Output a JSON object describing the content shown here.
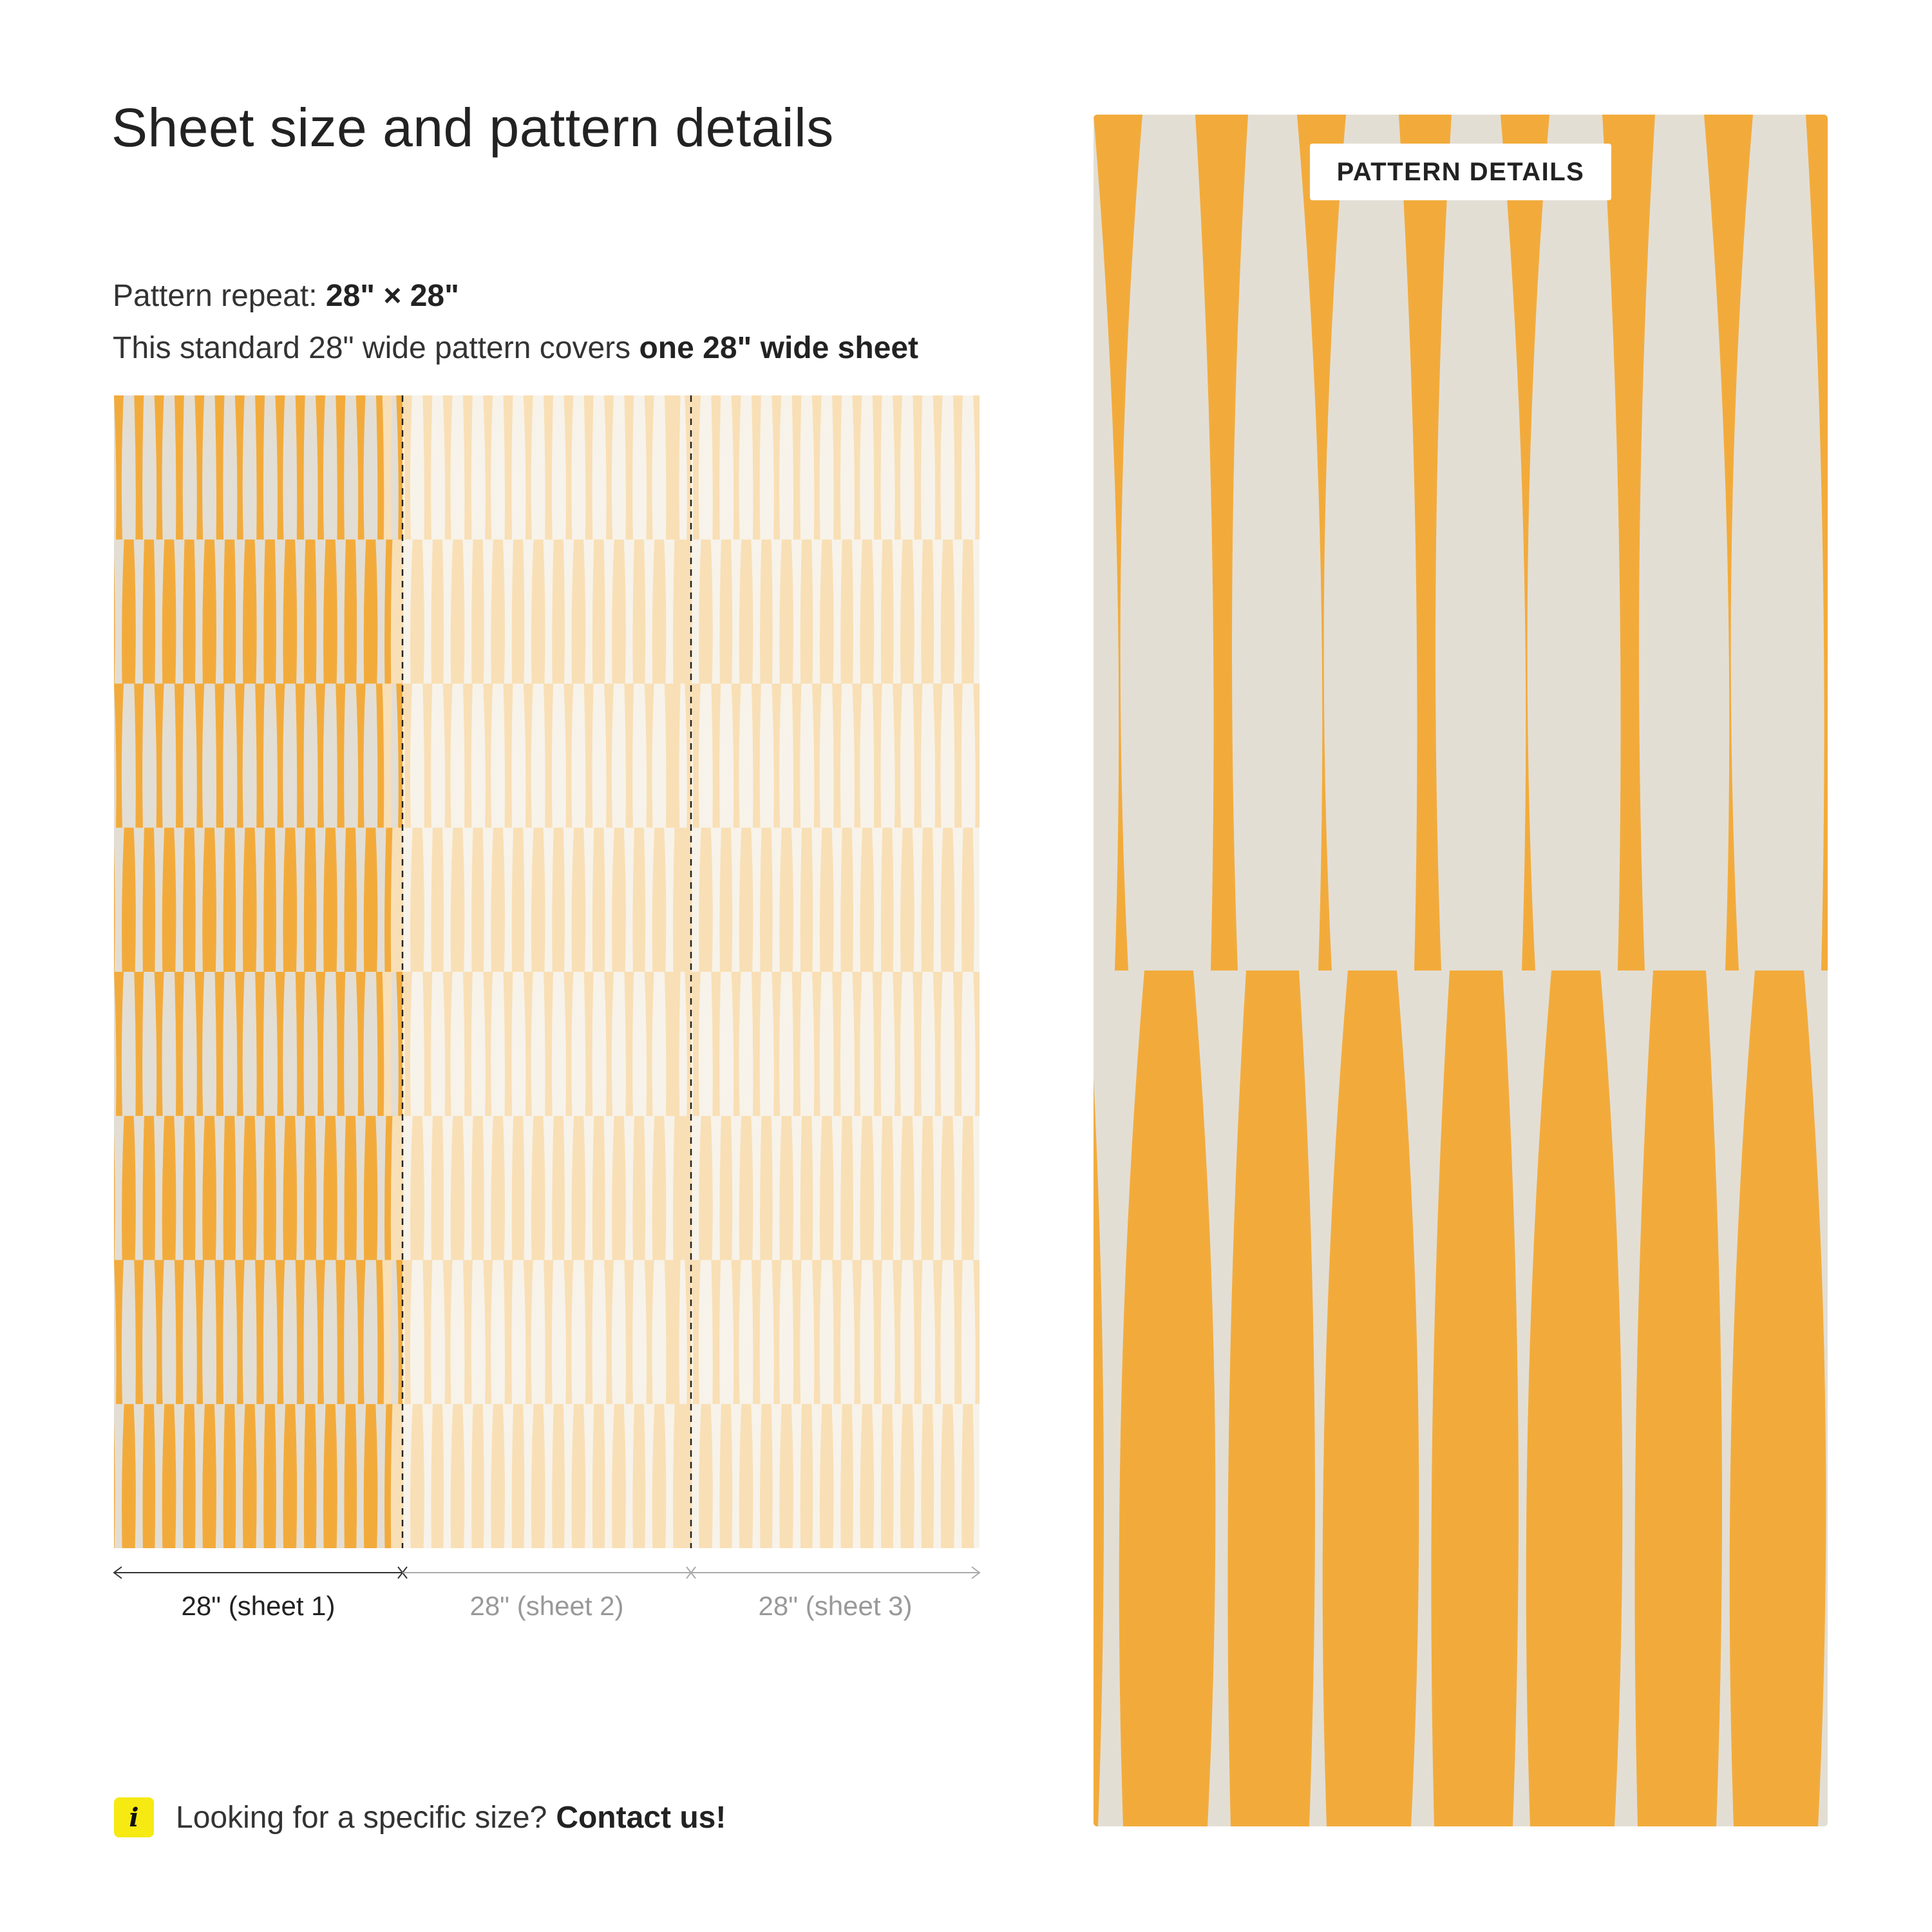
{
  "title": "Sheet size and pattern details",
  "repeat": {
    "label": "Pattern repeat:",
    "value": "28\" × 28\""
  },
  "coverage": {
    "text": "This standard 28\" wide pattern covers",
    "bold": "one 28\" wide sheet"
  },
  "sheets": [
    {
      "label": "28\" (sheet 1)",
      "state": "active"
    },
    {
      "label": "28\" (sheet 2)",
      "state": "faded"
    },
    {
      "label": "28\" (sheet 3)",
      "state": "faded"
    }
  ],
  "contact": {
    "icon": "info-icon",
    "icon_glyph": "i",
    "text": "Looking for a specific size?",
    "link": "Contact us!"
  },
  "detail": {
    "badge": "PATTERN DETAILS"
  },
  "colors": {
    "orange": "#f2ab3b",
    "cream": "#e3ded4",
    "faded_orange": "#f9dfb5",
    "faded_cream": "#f7f3ea",
    "info_yellow": "#f6ea12"
  }
}
